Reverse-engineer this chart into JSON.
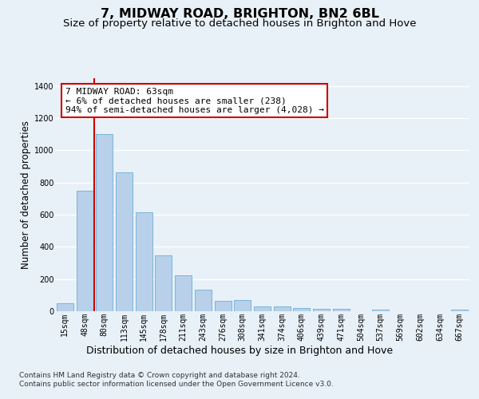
{
  "title": "7, MIDWAY ROAD, BRIGHTON, BN2 6BL",
  "subtitle": "Size of property relative to detached houses in Brighton and Hove",
  "xlabel": "Distribution of detached houses by size in Brighton and Hove",
  "ylabel": "Number of detached properties",
  "footer1": "Contains HM Land Registry data © Crown copyright and database right 2024.",
  "footer2": "Contains public sector information licensed under the Open Government Licence v3.0.",
  "categories": [
    "15sqm",
    "48sqm",
    "80sqm",
    "113sqm",
    "145sqm",
    "178sqm",
    "211sqm",
    "243sqm",
    "276sqm",
    "308sqm",
    "341sqm",
    "374sqm",
    "406sqm",
    "439sqm",
    "471sqm",
    "504sqm",
    "537sqm",
    "569sqm",
    "602sqm",
    "634sqm",
    "667sqm"
  ],
  "values": [
    50,
    750,
    1100,
    865,
    615,
    345,
    225,
    135,
    65,
    70,
    30,
    30,
    22,
    15,
    15,
    0,
    12,
    0,
    0,
    0,
    12
  ],
  "bar_color": "#b8d0ea",
  "bar_edge_color": "#6baed6",
  "vline_x_idx": 1.5,
  "vline_color": "#cc0000",
  "ann_line1": "7 MIDWAY ROAD: 63sqm",
  "ann_line2": "← 6% of detached houses are smaller (238)",
  "ann_line3": "94% of semi-detached houses are larger (4,028) →",
  "annotation_box_facecolor": "#ffffff",
  "annotation_box_edgecolor": "#cc0000",
  "ylim_max": 1450,
  "bg_color": "#e8f0f8",
  "plot_bg_color": "#e8f0f8",
  "grid_color": "#ffffff",
  "title_fontsize": 11.5,
  "subtitle_fontsize": 9.5,
  "xlabel_fontsize": 9,
  "ylabel_fontsize": 8.5,
  "tick_fontsize": 7,
  "annotation_fontsize": 8,
  "footer_fontsize": 6.5
}
